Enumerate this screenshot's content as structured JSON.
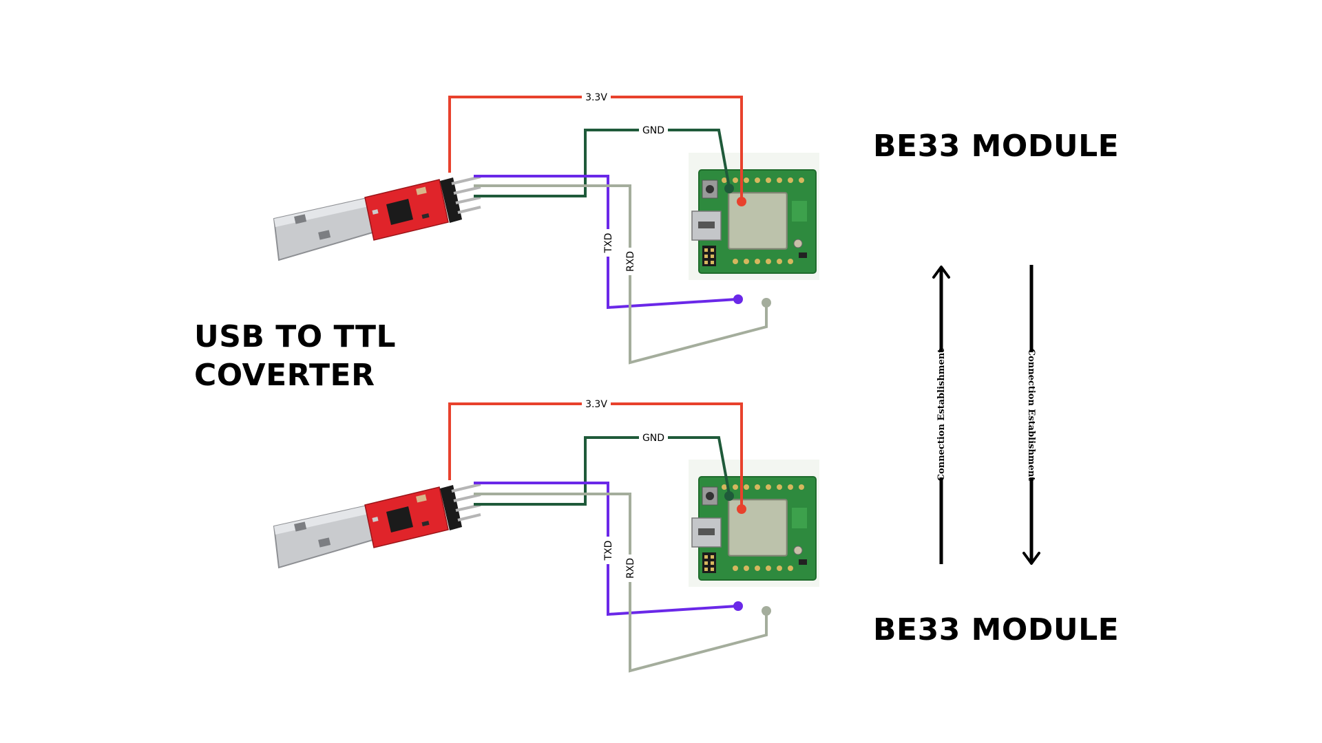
{
  "labels": {
    "module_top": "BE33 MODULE",
    "module_bottom": "BE33 MODULE",
    "converter_line1": "USB TO TTL",
    "converter_line2": "COVERTER"
  },
  "wires": {
    "vcc": "3.3V",
    "gnd": "GND",
    "txd": "TXD",
    "rxd": "RXD"
  },
  "arrows": {
    "up_label": "Connection   Establishment",
    "down_label": "Connection Establishment"
  },
  "colors": {
    "vcc": "#e8412c",
    "gnd": "#1f5a3a",
    "txd": "#6a28e8",
    "rxd": "#a4ad9c",
    "pcb_green": "#2e8a3e",
    "converter_red": "#e0242a"
  }
}
